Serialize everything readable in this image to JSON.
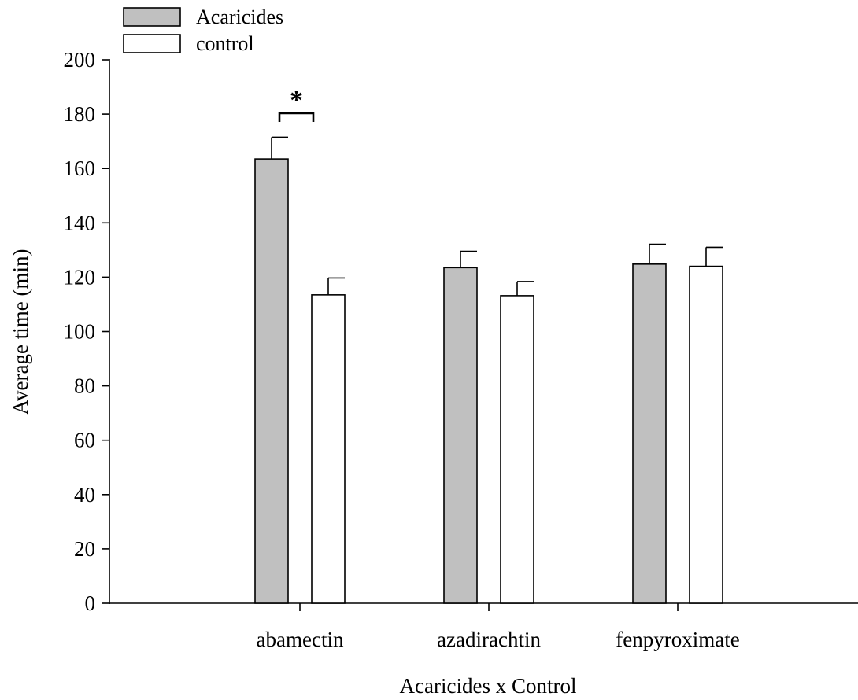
{
  "chart_data": {
    "type": "bar",
    "title": "",
    "xlabel": "Acaricides x Control",
    "ylabel": "Average time (min)",
    "ylim": [
      0,
      200
    ],
    "yticks": [
      0,
      20,
      40,
      60,
      80,
      100,
      120,
      140,
      160,
      180,
      200
    ],
    "categories": [
      "abamectin",
      "azadirachtin",
      "fenpyroximate"
    ],
    "series": [
      {
        "name": "Acaricides",
        "color": "#c0c0c0",
        "values": [
          163.5,
          123.5,
          124.8
        ],
        "errors": [
          8,
          6,
          7.3
        ]
      },
      {
        "name": "control",
        "color": "#ffffff",
        "values": [
          113.5,
          113.2,
          124.0
        ],
        "errors": [
          6.2,
          5.2,
          7
        ]
      }
    ],
    "legend_position": "top-left",
    "grid": false,
    "annotations": [
      {
        "text": "*",
        "category": "abamectin",
        "type": "significance-bracket"
      }
    ]
  }
}
